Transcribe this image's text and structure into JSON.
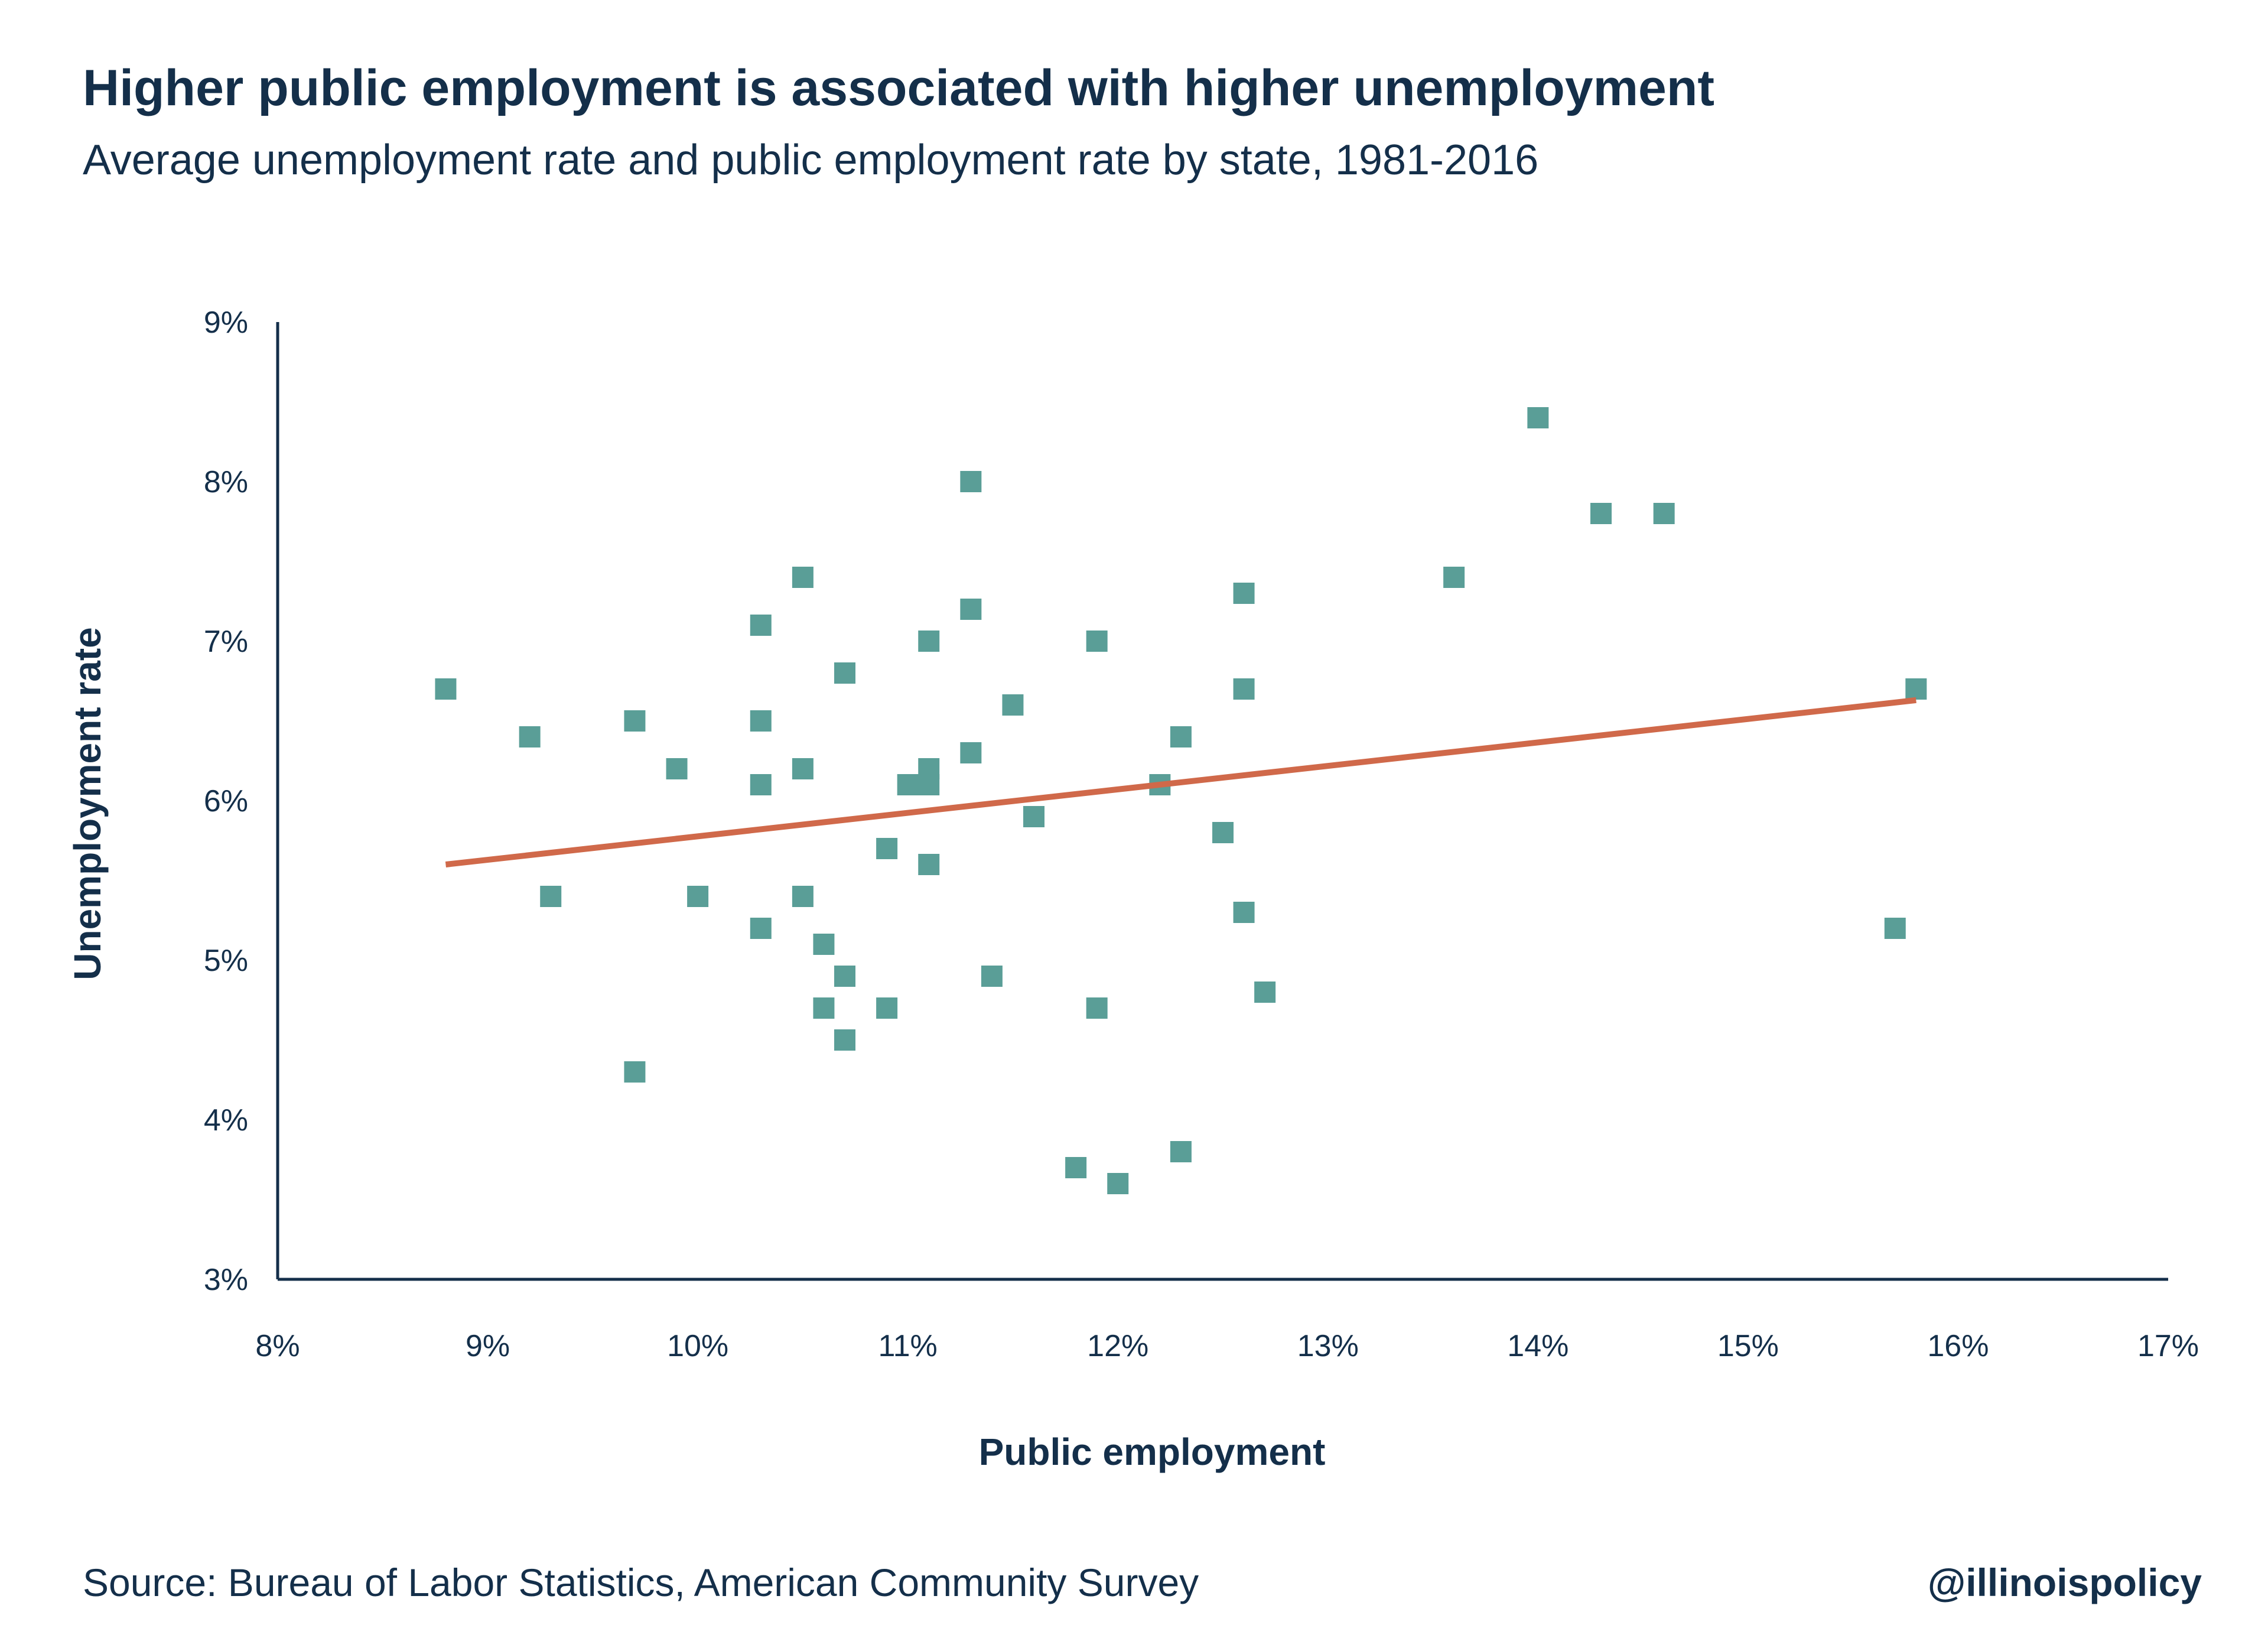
{
  "header": {
    "title": "Higher public employment is associated with higher unemployment",
    "subtitle": "Average unemployment rate and public employment rate by state, 1981-2016"
  },
  "footer": {
    "source": "Source: Bureau of Labor Statistics, American Community Survey",
    "handle": "@illinoispolicy"
  },
  "colors": {
    "points": "#5a9e97",
    "trendline": "#d0694a",
    "axis": "#142f4a",
    "text": "#142f4a"
  },
  "chart_data": {
    "type": "scatter",
    "title": "Higher public employment is associated with higher unemployment",
    "subtitle": "Average unemployment rate and public employment rate by state, 1981-2016",
    "xlabel": "Public employment",
    "ylabel": "Unemployment rate",
    "xlim": [
      8,
      17
    ],
    "ylim": [
      3,
      9
    ],
    "x_ticks": [
      8,
      9,
      10,
      11,
      12,
      13,
      14,
      15,
      16,
      17
    ],
    "y_ticks": [
      3,
      4,
      5,
      6,
      7,
      8,
      9
    ],
    "x_tick_labels": [
      "8%",
      "9%",
      "10%",
      "11%",
      "12%",
      "13%",
      "14%",
      "15%",
      "16%",
      "17%"
    ],
    "y_tick_labels": [
      "3%",
      "4%",
      "5%",
      "6%",
      "7%",
      "8%",
      "9%"
    ],
    "grid": false,
    "legend": "none",
    "marker": "square",
    "points": [
      {
        "x": 8.8,
        "y": 6.7
      },
      {
        "x": 9.2,
        "y": 6.4
      },
      {
        "x": 9.3,
        "y": 5.4
      },
      {
        "x": 9.7,
        "y": 6.5
      },
      {
        "x": 9.7,
        "y": 4.3
      },
      {
        "x": 9.9,
        "y": 6.2
      },
      {
        "x": 10.0,
        "y": 5.4
      },
      {
        "x": 10.3,
        "y": 7.1
      },
      {
        "x": 10.3,
        "y": 6.5
      },
      {
        "x": 10.3,
        "y": 6.1
      },
      {
        "x": 10.3,
        "y": 5.2
      },
      {
        "x": 10.5,
        "y": 7.4
      },
      {
        "x": 10.5,
        "y": 6.2
      },
      {
        "x": 10.5,
        "y": 5.4
      },
      {
        "x": 10.6,
        "y": 5.1
      },
      {
        "x": 10.6,
        "y": 4.7
      },
      {
        "x": 10.7,
        "y": 6.8
      },
      {
        "x": 10.7,
        "y": 4.9
      },
      {
        "x": 10.7,
        "y": 4.5
      },
      {
        "x": 10.9,
        "y": 5.7
      },
      {
        "x": 10.9,
        "y": 4.7
      },
      {
        "x": 11.0,
        "y": 6.1
      },
      {
        "x": 11.1,
        "y": 7.0
      },
      {
        "x": 11.1,
        "y": 6.2
      },
      {
        "x": 11.1,
        "y": 6.1
      },
      {
        "x": 11.1,
        "y": 5.6
      },
      {
        "x": 11.3,
        "y": 8.0
      },
      {
        "x": 11.3,
        "y": 7.2
      },
      {
        "x": 11.3,
        "y": 6.3
      },
      {
        "x": 11.4,
        "y": 4.9
      },
      {
        "x": 11.5,
        "y": 6.6
      },
      {
        "x": 11.6,
        "y": 5.9
      },
      {
        "x": 11.8,
        "y": 3.7
      },
      {
        "x": 11.9,
        "y": 7.0
      },
      {
        "x": 11.9,
        "y": 4.7
      },
      {
        "x": 12.0,
        "y": 3.6
      },
      {
        "x": 12.2,
        "y": 6.1
      },
      {
        "x": 12.3,
        "y": 6.4
      },
      {
        "x": 12.3,
        "y": 3.8
      },
      {
        "x": 12.5,
        "y": 5.8
      },
      {
        "x": 12.6,
        "y": 7.3
      },
      {
        "x": 12.6,
        "y": 6.7
      },
      {
        "x": 12.6,
        "y": 5.3
      },
      {
        "x": 12.7,
        "y": 4.8
      },
      {
        "x": 13.6,
        "y": 7.4
      },
      {
        "x": 14.0,
        "y": 8.4
      },
      {
        "x": 14.3,
        "y": 7.8
      },
      {
        "x": 14.6,
        "y": 7.8
      },
      {
        "x": 15.7,
        "y": 5.2
      },
      {
        "x": 15.8,
        "y": 6.7
      }
    ],
    "trendline": {
      "x": [
        8.8,
        15.8
      ],
      "y": [
        5.6,
        6.63
      ]
    }
  }
}
